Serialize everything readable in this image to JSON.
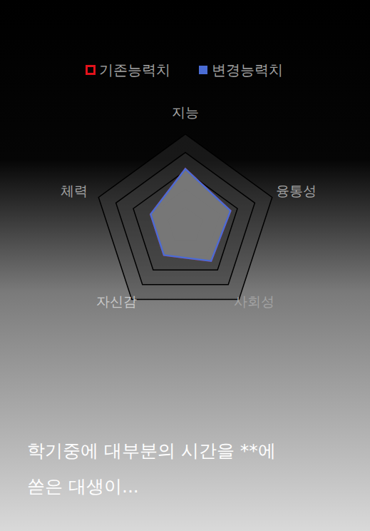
{
  "chart_data": {
    "type": "radar",
    "categories": [
      "지능",
      "융통성",
      "사회성",
      "자신감",
      "체력"
    ],
    "series": [
      {
        "name": "기존능력치",
        "color": "#e3121b",
        "marker": "square-open",
        "values": [
          3.1,
          2.6,
          2.4,
          2.0,
          2.0
        ]
      },
      {
        "name": "변경능력치",
        "color": "#4a6cd4",
        "marker": "square",
        "values": [
          3.1,
          2.6,
          2.4,
          2.0,
          2.0
        ]
      }
    ],
    "ylim": [
      0,
      5
    ],
    "yticks": [
      1,
      2,
      3,
      4,
      5
    ],
    "grid": true,
    "tick_labels": false,
    "legend": "top"
  },
  "caption": [
    "학기중에 대부분의 시간을 **에",
    "쏟은 대생이..."
  ]
}
